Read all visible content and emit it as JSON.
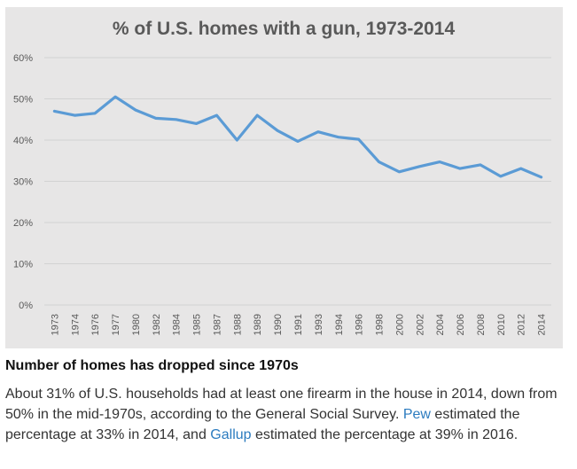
{
  "chart_data": {
    "type": "line",
    "title": "% of U.S. homes with a gun, 1973-2014",
    "xlabel": "",
    "ylabel": "",
    "categories": [
      "1973",
      "1974",
      "1976",
      "1977",
      "1980",
      "1982",
      "1984",
      "1985",
      "1987",
      "1988",
      "1989",
      "1990",
      "1991",
      "1993",
      "1994",
      "1996",
      "1998",
      "2000",
      "2002",
      "2004",
      "2006",
      "2008",
      "2010",
      "2012",
      "2014"
    ],
    "series": [
      {
        "values": [
          47,
          46,
          46.5,
          50.5,
          47.3,
          45.3,
          45,
          44,
          46,
          40,
          46,
          42.3,
          39.7,
          42,
          40.7,
          40.2,
          34.7,
          32.3,
          33.6,
          34.7,
          33.1,
          34,
          31.2,
          33.1,
          31
        ]
      }
    ],
    "ylim": [
      0,
      60
    ],
    "yticks": [
      0,
      10,
      20,
      30,
      40,
      50,
      60
    ],
    "ytick_labels": [
      "0%",
      "10%",
      "20%",
      "30%",
      "40%",
      "50%",
      "60%"
    ],
    "grid": true,
    "legend": "none",
    "colors": {
      "line": "#5b9bd5",
      "background": "#e7e6e6",
      "grid": "#d2d2d2"
    }
  },
  "caption": {
    "heading": "Number of homes has dropped since 1970s",
    "body_part1": "About 31% of U.S. households had at least one firearm in the house in 2014, down from 50% in the mid-1970s, according to the General Social Survey. ",
    "link_pew": "Pew",
    "body_part2": " estimated the percentage at 33% in 2014, and ",
    "link_gallup": "Gallup",
    "body_part3": " estimated the percentage at 39% in 2016.",
    "link_color": "#2b7bbf"
  }
}
